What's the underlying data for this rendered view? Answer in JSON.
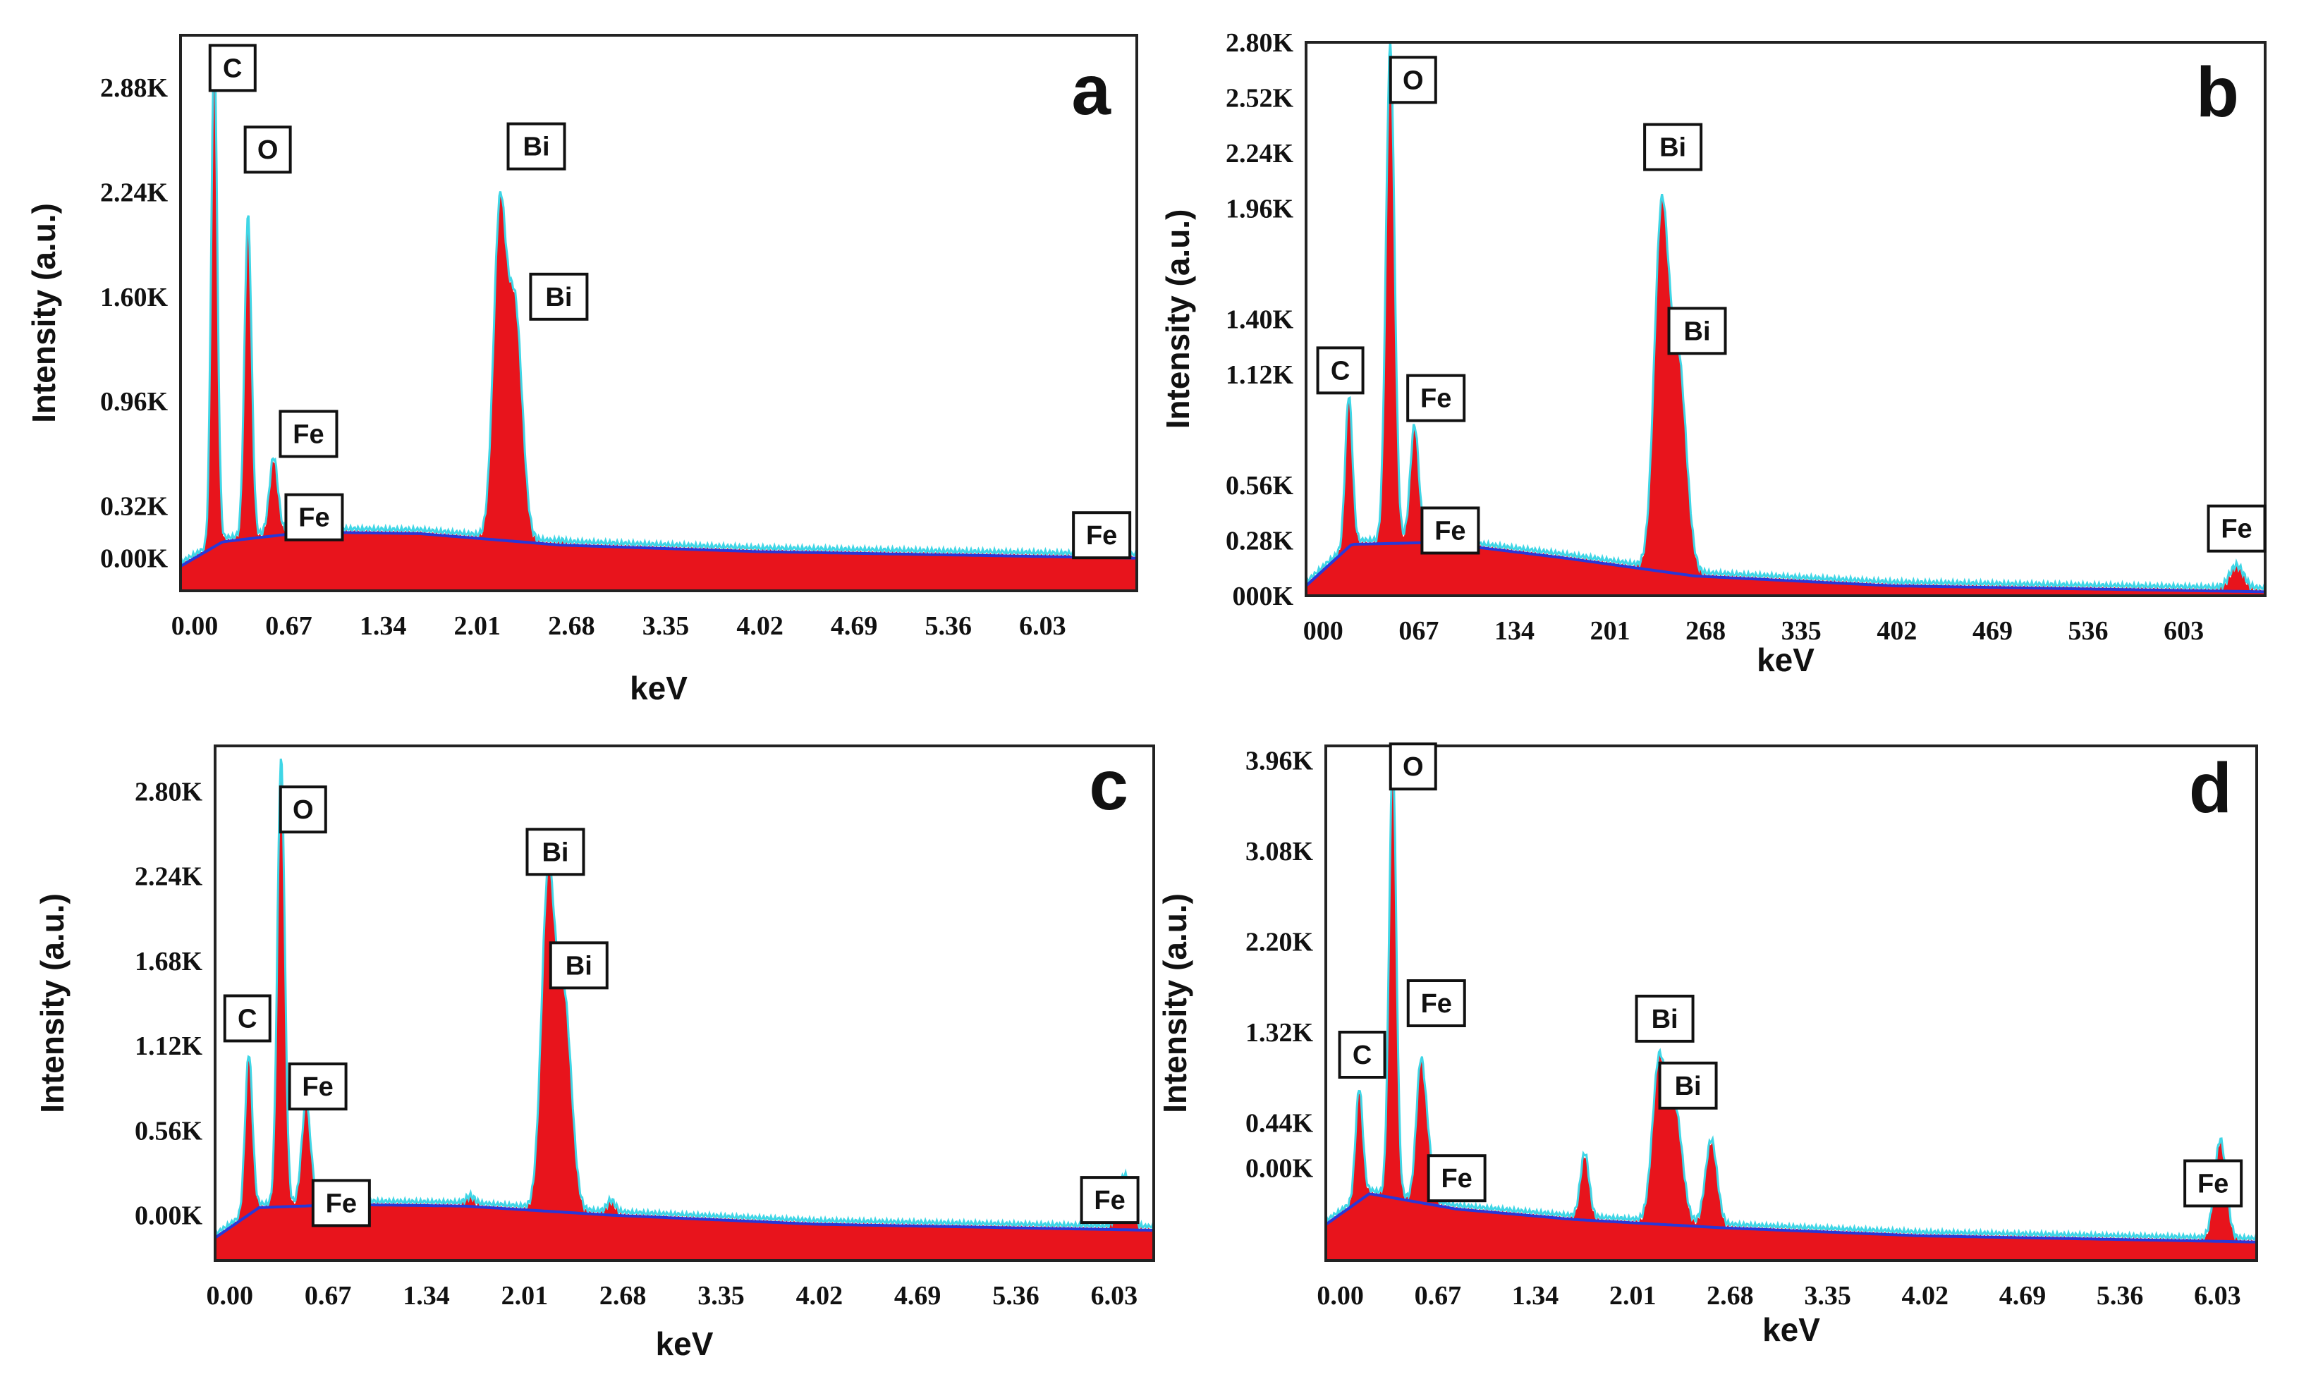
{
  "figure": {
    "colors": {
      "fill": "#e8141c",
      "outline": "#3fd6e6",
      "background": "#2838d8",
      "frame": "#222222"
    }
  },
  "chart_data": [
    {
      "type": "area",
      "panel_label": "a",
      "xlabel": "keV",
      "ylabel": "Intensity (a.u.)",
      "x_tick_labels": [
        "0.00",
        "0.67",
        "1.34",
        "2.01",
        "2.68",
        "3.35",
        "4.02",
        "4.69",
        "5.36",
        "6.03"
      ],
      "x_tick_values": [
        0,
        0.67,
        1.34,
        2.01,
        2.68,
        3.35,
        4.02,
        4.69,
        5.36,
        6.03
      ],
      "xlim": [
        -0.1,
        6.7
      ],
      "y_tick_labels": [
        "0.00K",
        "0.32K",
        "0.96K",
        "1.60K",
        "2.24K",
        "2.88K"
      ],
      "y_tick_values": [
        0,
        0.32,
        0.96,
        1.6,
        2.24,
        2.88
      ],
      "ylim": [
        -0.2,
        3.2
      ],
      "y_units": "K counts",
      "peaks": [
        {
          "label": "C",
          "x": 0.14,
          "y": 3.1,
          "w": 0.022
        },
        {
          "label": "O",
          "x": 0.38,
          "y": 2.08,
          "w": 0.025
        },
        {
          "label": "Fe",
          "x": 0.56,
          "y": 0.55,
          "w": 0.03
        },
        {
          "label": "Fe",
          "x": 0.58,
          "y": 0.2,
          "w": 0.03
        },
        {
          "label": "Bi",
          "x": 2.17,
          "y": 2.08,
          "w": 0.045
        },
        {
          "label": "Bi",
          "x": 2.28,
          "y": 1.5,
          "w": 0.05
        },
        {
          "label": "Fe",
          "x": 6.4,
          "y": 0.17,
          "w": 0.05
        }
      ],
      "minor_peaks": [
        {
          "x": 1.82,
          "y": 0.12,
          "w": 0.03
        },
        {
          "x": 2.6,
          "y": 0.09,
          "w": 0.03
        }
      ],
      "background": {
        "x": [
          -0.1,
          0.2,
          0.8,
          1.6,
          2.6,
          4.0,
          6.7
        ],
        "y": [
          -0.05,
          0.1,
          0.16,
          0.15,
          0.08,
          0.04,
          0.0
        ]
      },
      "annotations": [
        {
          "text": "C",
          "x": 0.27,
          "y": 3.0
        },
        {
          "text": "O",
          "x": 0.52,
          "y": 2.5
        },
        {
          "text": "Fe",
          "x": 0.81,
          "y": 0.76
        },
        {
          "text": "Fe",
          "x": 0.85,
          "y": 0.25
        },
        {
          "text": "Bi",
          "x": 2.43,
          "y": 2.52
        },
        {
          "text": "Bi",
          "x": 2.59,
          "y": 1.6
        },
        {
          "text": "Fe",
          "x": 6.45,
          "y": 0.14
        }
      ]
    },
    {
      "type": "area",
      "panel_label": "b",
      "xlabel": "keV",
      "ylabel": "Intensity (a.u.)",
      "x_tick_labels": [
        "000",
        "067",
        "134",
        "201",
        "268",
        "335",
        "402",
        "469",
        "536",
        "603"
      ],
      "x_tick_values": [
        0,
        67,
        134,
        201,
        268,
        335,
        402,
        469,
        536,
        603
      ],
      "xlim": [
        -12,
        660
      ],
      "y_tick_labels": [
        "000K",
        "0.28K",
        "0.56K",
        "1.12K",
        "1.40K",
        "1.96K",
        "2.24K",
        "2.52K",
        "2.80K"
      ],
      "y_tick_values": [
        0,
        0.28,
        0.56,
        1.12,
        1.4,
        1.96,
        2.24,
        2.52,
        2.8
      ],
      "ylim": [
        0,
        2.8
      ],
      "y_units": "K counts",
      "peaks": [
        {
          "label": "C",
          "x": 18,
          "y": 1.0,
          "w": 2.5
        },
        {
          "label": "O",
          "x": 47,
          "y": 2.78,
          "w": 3
        },
        {
          "label": "Fe",
          "x": 64,
          "y": 0.85,
          "w": 3
        },
        {
          "label": "Fe",
          "x": 72,
          "y": 0.12,
          "w": 3
        },
        {
          "label": "Bi",
          "x": 237,
          "y": 1.9,
          "w": 5
        },
        {
          "label": "Bi",
          "x": 249,
          "y": 1.15,
          "w": 5.5
        },
        {
          "label": "Fe",
          "x": 640,
          "y": 0.14,
          "w": 5
        }
      ],
      "minor_peaks": [
        {
          "x": 183,
          "y": 0.12,
          "w": 3
        },
        {
          "x": 272,
          "y": 0.07,
          "w": 3
        }
      ],
      "background": {
        "x": [
          -12,
          20,
          80,
          170,
          260,
          400,
          660
        ],
        "y": [
          0.05,
          0.26,
          0.27,
          0.19,
          0.1,
          0.05,
          0.02
        ]
      },
      "annotations": [
        {
          "text": "C",
          "x": 12,
          "y": 1.14
        },
        {
          "text": "O",
          "x": 63,
          "y": 2.61
        },
        {
          "text": "Fe",
          "x": 79,
          "y": 1.0
        },
        {
          "text": "Fe",
          "x": 89,
          "y": 0.33
        },
        {
          "text": "Bi",
          "x": 245,
          "y": 2.27
        },
        {
          "text": "Bi",
          "x": 262,
          "y": 1.34
        },
        {
          "text": "Fe",
          "x": 640,
          "y": 0.34
        }
      ]
    },
    {
      "type": "area",
      "panel_label": "c",
      "xlabel": "keV",
      "ylabel": "Intensity (a.u.)",
      "x_tick_labels": [
        "0.00",
        "0.67",
        "1.34",
        "2.01",
        "2.68",
        "3.35",
        "4.02",
        "4.69",
        "5.36",
        "6.03"
      ],
      "x_tick_values": [
        0,
        0.67,
        1.34,
        2.01,
        2.68,
        3.35,
        4.02,
        4.69,
        5.36,
        6.03
      ],
      "xlim": [
        -0.1,
        6.3
      ],
      "y_tick_labels": [
        "0.00K",
        "0.56K",
        "1.12K",
        "1.68K",
        "2.24K",
        "2.80K"
      ],
      "y_tick_values": [
        0,
        0.56,
        1.12,
        1.68,
        2.24,
        2.8
      ],
      "ylim": [
        -0.3,
        3.1
      ],
      "y_units": "K counts",
      "peaks": [
        {
          "label": "C",
          "x": 0.13,
          "y": 1.05,
          "w": 0.025
        },
        {
          "label": "O",
          "x": 0.35,
          "y": 3.0,
          "w": 0.025
        },
        {
          "label": "Fe",
          "x": 0.52,
          "y": 0.72,
          "w": 0.03
        },
        {
          "label": "Fe",
          "x": 0.58,
          "y": 0.1,
          "w": 0.03
        },
        {
          "label": "Bi",
          "x": 2.17,
          "y": 2.17,
          "w": 0.045
        },
        {
          "label": "Bi",
          "x": 2.28,
          "y": 1.4,
          "w": 0.05
        },
        {
          "label": "Fe",
          "x": 6.1,
          "y": 0.25,
          "w": 0.04
        }
      ],
      "minor_peaks": [
        {
          "x": 1.64,
          "y": 0.11,
          "w": 0.03
        },
        {
          "x": 2.6,
          "y": 0.08,
          "w": 0.03
        }
      ],
      "background": {
        "x": [
          -0.1,
          0.2,
          0.8,
          1.6,
          2.6,
          4.0,
          6.3
        ],
        "y": [
          -0.15,
          0.05,
          0.07,
          0.06,
          0.0,
          -0.06,
          -0.1
        ]
      },
      "annotations": [
        {
          "text": "C",
          "x": 0.12,
          "y": 1.3
        },
        {
          "text": "O",
          "x": 0.5,
          "y": 2.68
        },
        {
          "text": "Fe",
          "x": 0.6,
          "y": 0.85
        },
        {
          "text": "Fe",
          "x": 0.76,
          "y": 0.08
        },
        {
          "text": "Bi",
          "x": 2.22,
          "y": 2.4
        },
        {
          "text": "Bi",
          "x": 2.38,
          "y": 1.65
        },
        {
          "text": "Fe",
          "x": 6.0,
          "y": 0.1
        }
      ]
    },
    {
      "type": "area",
      "panel_label": "d",
      "xlabel": "keV",
      "ylabel": "Intensity (a.u.)",
      "x_tick_labels": [
        "0.00",
        "0.67",
        "1.34",
        "2.01",
        "2.68",
        "3.35",
        "4.02",
        "4.69",
        "5.36",
        "6.03"
      ],
      "x_tick_values": [
        0,
        0.67,
        1.34,
        2.01,
        2.68,
        3.35,
        4.02,
        4.69,
        5.36,
        6.03
      ],
      "xlim": [
        -0.1,
        6.3
      ],
      "y_tick_labels": [
        "0.00K",
        "0.44K",
        "1.32K",
        "2.20K",
        "3.08K",
        "3.96K"
      ],
      "y_tick_values": [
        0,
        0.44,
        1.32,
        2.2,
        3.08,
        3.96
      ],
      "ylim": [
        -0.9,
        4.1
      ],
      "y_units": "K counts",
      "peaks": [
        {
          "label": "C",
          "x": 0.13,
          "y": 0.75,
          "w": 0.025
        },
        {
          "label": "O",
          "x": 0.36,
          "y": 3.95,
          "w": 0.025
        },
        {
          "label": "Fe",
          "x": 0.55,
          "y": 0.9,
          "w": 0.03
        },
        {
          "label": "Fe",
          "x": 0.6,
          "y": 0.15,
          "w": 0.03
        },
        {
          "label": "Bi",
          "x": 2.19,
          "y": 0.98,
          "w": 0.045
        },
        {
          "label": "Bi",
          "x": 2.3,
          "y": 0.55,
          "w": 0.05
        },
        {
          "label": "Fe",
          "x": 6.05,
          "y": 0.25,
          "w": 0.04
        }
      ],
      "minor_peaks": [
        {
          "x": 1.68,
          "y": 0.12,
          "w": 0.03
        },
        {
          "x": 2.55,
          "y": 0.25,
          "w": 0.04
        }
      ],
      "background": {
        "x": [
          -0.1,
          0.2,
          0.8,
          1.6,
          2.6,
          4.0,
          6.3
        ],
        "y": [
          -0.55,
          -0.25,
          -0.4,
          -0.5,
          -0.58,
          -0.66,
          -0.72
        ]
      },
      "annotations": [
        {
          "text": "C",
          "x": 0.15,
          "y": 1.1
        },
        {
          "text": "O",
          "x": 0.5,
          "y": 3.9
        },
        {
          "text": "Fe",
          "x": 0.66,
          "y": 1.6
        },
        {
          "text": "Fe",
          "x": 0.8,
          "y": -0.1
        },
        {
          "text": "Bi",
          "x": 2.23,
          "y": 1.45
        },
        {
          "text": "Bi",
          "x": 2.39,
          "y": 0.8
        },
        {
          "text": "Fe",
          "x": 6.0,
          "y": -0.15
        }
      ]
    }
  ]
}
